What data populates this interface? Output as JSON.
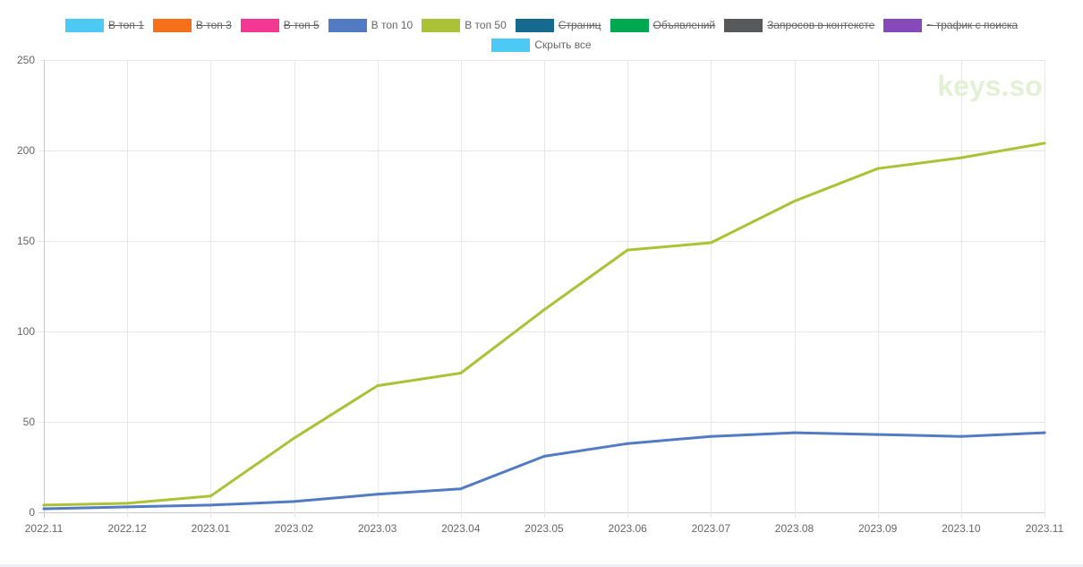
{
  "watermark": "keys.so",
  "chart_data": {
    "type": "line",
    "categories": [
      "2022.11",
      "2022.12",
      "2023.01",
      "2023.02",
      "2023.03",
      "2023.04",
      "2023.05",
      "2023.06",
      "2023.07",
      "2023.08",
      "2023.09",
      "2023.10",
      "2023.11"
    ],
    "ylim": [
      0,
      250
    ],
    "yticks": [
      0,
      50,
      100,
      150,
      200,
      250
    ],
    "grid": true,
    "legend_position": "top",
    "legend": [
      {
        "label": "В топ 1",
        "color": "#4dc9f6",
        "hidden": true
      },
      {
        "label": "В топ 3",
        "color": "#f67019",
        "hidden": true
      },
      {
        "label": "В топ 5",
        "color": "#f53794",
        "hidden": true
      },
      {
        "label": "В топ 10",
        "color": "#537bc4",
        "hidden": false
      },
      {
        "label": "В топ 50",
        "color": "#acc236",
        "hidden": false
      },
      {
        "label": "Страниц",
        "color": "#166a8f",
        "hidden": true
      },
      {
        "label": "Объявлений",
        "color": "#00a950",
        "hidden": true
      },
      {
        "label": "Запросов в контексте",
        "color": "#58595b",
        "hidden": true
      },
      {
        "label": "~ трафик с поиска",
        "color": "#8549ba",
        "hidden": true
      }
    ],
    "hide_all": {
      "label": "Скрыть все",
      "color": "#4dc9f6"
    },
    "series": [
      {
        "name": "В топ 10",
        "color": "#537bc4",
        "values": [
          2,
          3,
          4,
          6,
          10,
          13,
          31,
          38,
          42,
          44,
          43,
          42,
          44
        ]
      },
      {
        "name": "В топ 50",
        "color": "#acc236",
        "values": [
          4,
          5,
          9,
          41,
          70,
          77,
          112,
          145,
          149,
          172,
          190,
          196,
          204
        ]
      }
    ]
  }
}
